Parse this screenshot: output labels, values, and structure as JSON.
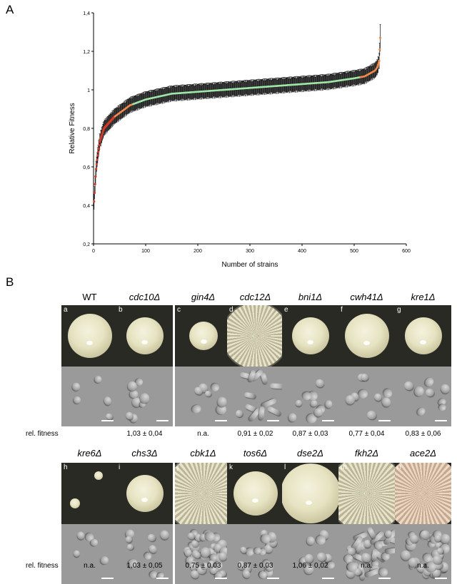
{
  "panel_a_label": "A",
  "panel_b_label": "B",
  "chart_data": {
    "type": "scatter",
    "xlabel": "Number of strains",
    "ylabel": "Relative Fitness",
    "xlim": [
      0,
      600
    ],
    "ylim": [
      0.2,
      1.4
    ],
    "xticks": [
      "0",
      "100",
      "200",
      "300",
      "400",
      "500",
      "600"
    ],
    "yticks": [
      "0,2",
      "0,4",
      "0,6",
      "0,8",
      "1",
      "1,2",
      "1,4"
    ],
    "n_points": 550,
    "curve_anchors": {
      "x": [
        1,
        3,
        5,
        8,
        12,
        20,
        40,
        70,
        100,
        150,
        200,
        300,
        400,
        450,
        500,
        520,
        540,
        545,
        548,
        550
      ],
      "y": [
        0.42,
        0.51,
        0.59,
        0.66,
        0.73,
        0.8,
        0.86,
        0.92,
        0.95,
        0.98,
        0.99,
        1.01,
        1.03,
        1.04,
        1.06,
        1.07,
        1.1,
        1.12,
        1.15,
        1.27
      ]
    },
    "error": 0.03,
    "colors": {
      "low_tail": "#d23a2a",
      "low_mid": "#f08a4b",
      "center": "#9ee6a8",
      "high_tail": "#f08a4b",
      "error_bar": "#111111"
    }
  },
  "panel_b": {
    "row1": [
      {
        "letter": "a",
        "genotype": "WT",
        "fitness": "",
        "colony": "smooth-large"
      },
      {
        "letter": "b",
        "genotype": "cdc10Δ",
        "fitness": "1,03 ± 0,04",
        "colony": "smooth-medium"
      },
      {
        "letter": "c",
        "genotype": "gin4Δ",
        "fitness": "n.a.",
        "colony": "smooth-small"
      },
      {
        "letter": "d",
        "genotype": "cdc12Δ",
        "fitness": "0,91 ± 0,02",
        "colony": "rough-large"
      },
      {
        "letter": "e",
        "genotype": "bni1Δ",
        "fitness": "0,87 ± 0,03",
        "colony": "smooth-medium"
      },
      {
        "letter": "f",
        "genotype": "cwh41Δ",
        "fitness": "0,77 ± 0,04",
        "colony": "smooth-large"
      },
      {
        "letter": "g",
        "genotype": "kre1Δ",
        "fitness": "0,83 ± 0,06",
        "colony": "smooth-medium"
      }
    ],
    "row2": [
      {
        "letter": "h",
        "genotype": "kre6Δ",
        "fitness": "n.a.",
        "colony": "tiny"
      },
      {
        "letter": "i",
        "genotype": "chs3Δ",
        "fitness": "1,03 ± 0,05",
        "colony": "smooth-medium"
      },
      {
        "letter": "j",
        "genotype": "cbk1Δ",
        "fitness": "0,75 ± 0,03",
        "colony": "rough-full"
      },
      {
        "letter": "k",
        "genotype": "tos6Δ",
        "fitness": "0,87 ± 0,03",
        "colony": "smooth-large"
      },
      {
        "letter": "l",
        "genotype": "dse2Δ",
        "fitness": "1,06 ± 0,02",
        "colony": "smooth-full"
      },
      {
        "letter": "m",
        "genotype": "fkh2Δ",
        "fitness": "n.a.",
        "colony": "rough-full"
      },
      {
        "letter": "n",
        "genotype": "ace2Δ",
        "fitness": "n.a.",
        "colony": "pink-full"
      }
    ],
    "fitness_row_label": "rel. fitness"
  }
}
